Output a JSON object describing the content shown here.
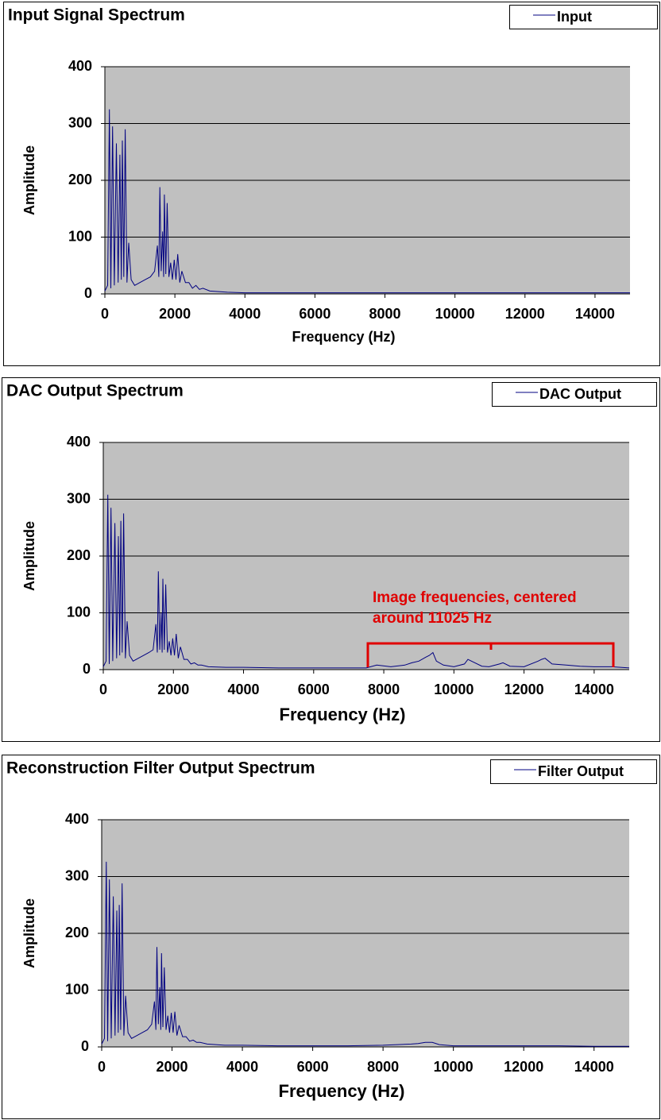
{
  "chart_data": [
    {
      "type": "line",
      "title": "Input Signal Spectrum",
      "x_label": "Frequency (Hz)",
      "y_label": "Amplitude",
      "x": [
        0,
        80,
        130,
        170,
        220,
        270,
        330,
        380,
        430,
        470,
        500,
        540,
        580,
        630,
        680,
        750,
        850,
        1000,
        1150,
        1300,
        1420,
        1500,
        1540,
        1570,
        1610,
        1650,
        1680,
        1700,
        1740,
        1780,
        1830,
        1880,
        1930,
        1980,
        2030,
        2080,
        2140,
        2200,
        2300,
        2400,
        2500,
        2600,
        2700,
        2800,
        3000,
        3500,
        4000,
        5000,
        6000,
        7000,
        8000,
        9000,
        10000,
        11000,
        12000,
        13000,
        14000,
        15000
      ],
      "series": [
        {
          "name": "Input",
          "color": "#000080",
          "values": [
            5,
            15,
            325,
            10,
            295,
            15,
            265,
            20,
            245,
            25,
            270,
            30,
            290,
            20,
            90,
            25,
            15,
            20,
            25,
            30,
            40,
            85,
            30,
            188,
            40,
            110,
            30,
            175,
            35,
            160,
            30,
            55,
            25,
            60,
            25,
            70,
            20,
            40,
            20,
            20,
            10,
            15,
            8,
            10,
            5,
            3,
            2,
            2,
            2,
            2,
            2,
            2,
            2,
            2,
            2,
            2,
            2,
            2
          ]
        }
      ],
      "xlim": [
        0,
        15000
      ],
      "xticks": [
        0,
        2000,
        4000,
        6000,
        8000,
        10000,
        12000,
        14000
      ],
      "ylim": [
        0,
        400
      ],
      "yticks": [
        0,
        100,
        200,
        300,
        400
      ],
      "grid": true,
      "legend": "top-right",
      "plot_background": "#c0c0c0"
    },
    {
      "type": "line",
      "title": "DAC Output Spectrum",
      "x_label": "Frequency (Hz)",
      "y_label": "Amplitude",
      "x": [
        0,
        80,
        130,
        170,
        220,
        270,
        330,
        380,
        430,
        470,
        500,
        540,
        580,
        630,
        680,
        750,
        850,
        1000,
        1150,
        1300,
        1420,
        1500,
        1540,
        1570,
        1610,
        1650,
        1680,
        1700,
        1740,
        1780,
        1830,
        1880,
        1930,
        1980,
        2030,
        2080,
        2140,
        2200,
        2300,
        2400,
        2500,
        2600,
        2700,
        2800,
        3000,
        3500,
        4000,
        5000,
        6000,
        7000,
        7500,
        7800,
        8200,
        8600,
        8800,
        9000,
        9200,
        9300,
        9400,
        9500,
        9700,
        10000,
        10300,
        10400,
        10500,
        10800,
        11000,
        11300,
        11400,
        11600,
        12000,
        12400,
        12500,
        12600,
        12800,
        13200,
        13600,
        14000,
        14500,
        15000
      ],
      "series": [
        {
          "name": "DAC Output",
          "color": "#000080",
          "values": [
            5,
            15,
            308,
            10,
            285,
            15,
            258,
            20,
            235,
            25,
            262,
            30,
            275,
            20,
            85,
            25,
            15,
            20,
            25,
            30,
            35,
            80,
            30,
            173,
            35,
            100,
            30,
            160,
            35,
            150,
            30,
            50,
            25,
            55,
            25,
            63,
            20,
            40,
            18,
            18,
            10,
            12,
            8,
            8,
            5,
            4,
            4,
            3,
            3,
            3,
            3,
            8,
            5,
            8,
            12,
            15,
            22,
            25,
            30,
            15,
            8,
            5,
            10,
            18,
            15,
            6,
            5,
            10,
            12,
            6,
            5,
            15,
            18,
            20,
            10,
            8,
            6,
            5,
            5,
            3
          ]
        }
      ],
      "xlim": [
        0,
        15000
      ],
      "xticks": [
        0,
        2000,
        4000,
        6000,
        8000,
        10000,
        12000,
        14000
      ],
      "ylim": [
        0,
        400
      ],
      "yticks": [
        0,
        100,
        200,
        300,
        400
      ],
      "grid": true,
      "legend": "top-right",
      "plot_background": "#c0c0c0",
      "annotation": [
        "Image frequencies, centered",
        "around 11025 Hz"
      ]
    },
    {
      "type": "line",
      "title": "Reconstruction Filter Output Spectrum",
      "x_label": "Frequency (Hz)",
      "y_label": "Amplitude",
      "x": [
        0,
        80,
        130,
        170,
        220,
        270,
        330,
        380,
        430,
        470,
        500,
        540,
        580,
        630,
        680,
        750,
        850,
        1000,
        1150,
        1300,
        1420,
        1500,
        1540,
        1570,
        1610,
        1650,
        1680,
        1700,
        1740,
        1780,
        1830,
        1880,
        1930,
        1980,
        2030,
        2080,
        2140,
        2200,
        2300,
        2400,
        2500,
        2600,
        2700,
        2800,
        3000,
        3500,
        4000,
        5000,
        6000,
        7000,
        8000,
        8800,
        9000,
        9200,
        9400,
        9600,
        10000,
        11000,
        12000,
        13000,
        14000,
        15000
      ],
      "series": [
        {
          "name": "Filter Output",
          "color": "#000080",
          "values": [
            5,
            15,
            326,
            10,
            295,
            15,
            265,
            20,
            240,
            25,
            250,
            30,
            288,
            20,
            90,
            25,
            15,
            20,
            25,
            30,
            40,
            80,
            30,
            176,
            40,
            105,
            30,
            165,
            35,
            140,
            30,
            55,
            25,
            60,
            25,
            62,
            20,
            38,
            18,
            18,
            10,
            12,
            8,
            8,
            5,
            3,
            3,
            2,
            2,
            2,
            3,
            5,
            6,
            8,
            8,
            4,
            2,
            2,
            2,
            2,
            1,
            1
          ]
        }
      ],
      "xlim": [
        0,
        15000
      ],
      "xticks": [
        0,
        2000,
        4000,
        6000,
        8000,
        10000,
        12000,
        14000
      ],
      "ylim": [
        0,
        400
      ],
      "yticks": [
        0,
        100,
        200,
        300,
        400
      ],
      "grid": true,
      "legend": "top-right",
      "plot_background": "#c0c0c0"
    }
  ]
}
